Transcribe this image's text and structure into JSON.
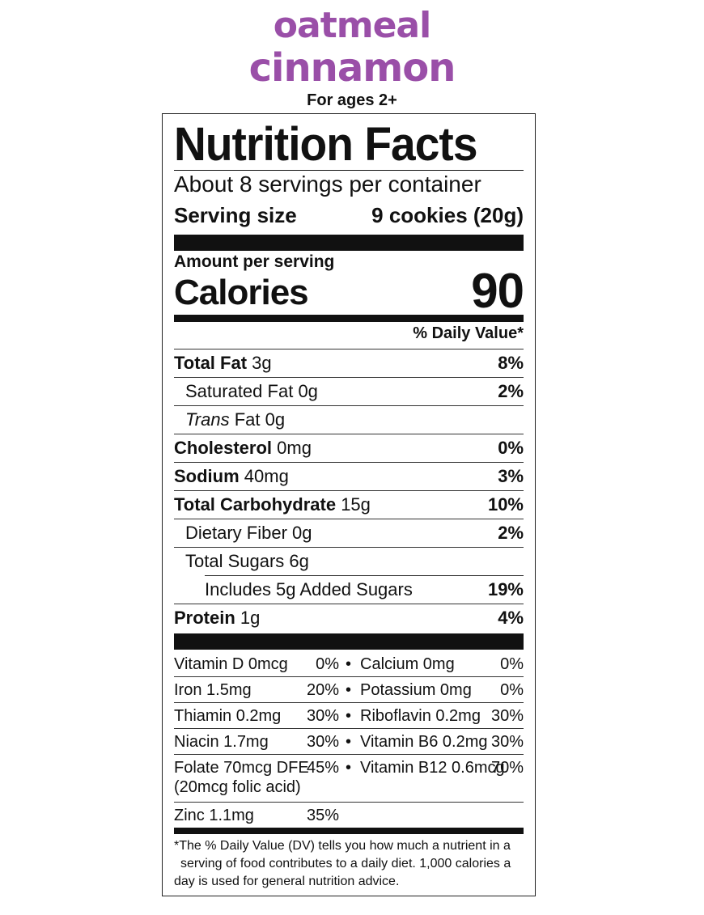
{
  "product": {
    "flavor_line1": "oatmeal",
    "flavor_line2": "cinnamon",
    "ages": "For ages 2+"
  },
  "colors": {
    "flavor": "#9a4fa8",
    "text": "#111111"
  },
  "label": {
    "title": "Nutrition Facts",
    "servings_per_container": "About 8 servings per container",
    "serving_size_label": "Serving size",
    "serving_size_value": "9 cookies (20g)",
    "amount_per_serving": "Amount per serving",
    "calories_label": "Calories",
    "calories_value": "90",
    "dv_header": "% Daily Value*",
    "nutrients": [
      {
        "name": "Total Fat",
        "amount": "3g",
        "dv": "8%"
      },
      {
        "name": "Saturated Fat",
        "amount": "0g",
        "dv": "2%"
      },
      {
        "name_italic": "Trans",
        "name": "Fat",
        "amount": "0g",
        "dv": ""
      },
      {
        "name": "Cholesterol",
        "amount": "0mg",
        "dv": "0%"
      },
      {
        "name": "Sodium",
        "amount": "40mg",
        "dv": "3%"
      },
      {
        "name": "Total Carbohydrate",
        "amount": "15g",
        "dv": "10%"
      },
      {
        "name": "Dietary Fiber",
        "amount": "0g",
        "dv": "2%"
      },
      {
        "name": "Total Sugars",
        "amount": "6g",
        "dv": ""
      },
      {
        "name": "Includes 5g Added Sugars",
        "amount": "",
        "dv": "19%"
      },
      {
        "name": "Protein",
        "amount": "1g",
        "dv": "4%"
      }
    ],
    "vitamins": [
      {
        "left": "Vitamin D 0mcg",
        "left_dv": "0%",
        "right": "Calcium 0mg",
        "right_dv": "0%"
      },
      {
        "left": "Iron 1.5mg",
        "left_dv": "20%",
        "right": "Potassium 0mg",
        "right_dv": "0%"
      },
      {
        "left": "Thiamin 0.2mg",
        "left_dv": "30%",
        "right": "Riboflavin 0.2mg",
        "right_dv": "30%"
      },
      {
        "left": "Niacin 1.7mg",
        "left_dv": "30%",
        "right": "Vitamin B6 0.2mg",
        "right_dv": "30%"
      },
      {
        "left": "Folate 70mcg DFE",
        "left_sub": "(20mcg folic acid)",
        "left_dv": "45%",
        "right": "Vitamin B12 0.6mcg",
        "right_dv": "70%"
      },
      {
        "left": "Zinc 1.1mg",
        "left_dv": "35%"
      }
    ],
    "bullet": "•",
    "footnote_lines": [
      "*The % Daily Value (DV) tells you how much a nutrient in a",
      "serving of food contributes to a daily diet. 1,000 calories a",
      "day is used for general nutrition advice."
    ]
  }
}
